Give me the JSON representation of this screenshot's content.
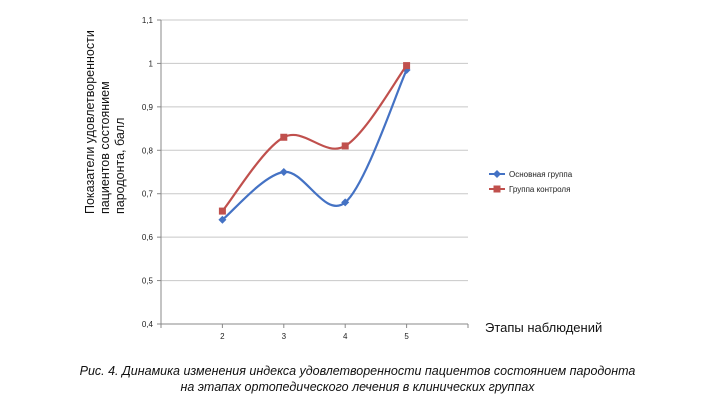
{
  "chart_data": {
    "type": "line",
    "smooth": true,
    "categories": [
      "2",
      "3",
      "4",
      "5"
    ],
    "series": [
      {
        "name": "Основная группа",
        "values": [
          0.64,
          0.75,
          0.68,
          0.985
        ],
        "color": "#4472C4",
        "marker": "diamond"
      },
      {
        "name": "Группа контроля",
        "values": [
          0.66,
          0.83,
          0.81,
          0.995
        ],
        "color": "#C0504D",
        "marker": "square"
      }
    ],
    "ylim": [
      0.4,
      1.1
    ],
    "yticks": [
      "0,4",
      "0,5",
      "0,6",
      "0,7",
      "0,8",
      "0,9",
      "1",
      "1,1"
    ],
    "xlabel": "Этапы наблюдений",
    "ylabel_lines": [
      "Показатели удовлетворенности",
      "пациентов состоянием",
      "пародонта, балл"
    ],
    "legend_position": "right",
    "grid": "horizontal"
  },
  "caption": {
    "line1": "Рис. 4. Динамика изменения индекса удовлетворенности пациентов состоянием пародонта",
    "line2": "на этапах ортопедического лечения в клинических группах"
  }
}
